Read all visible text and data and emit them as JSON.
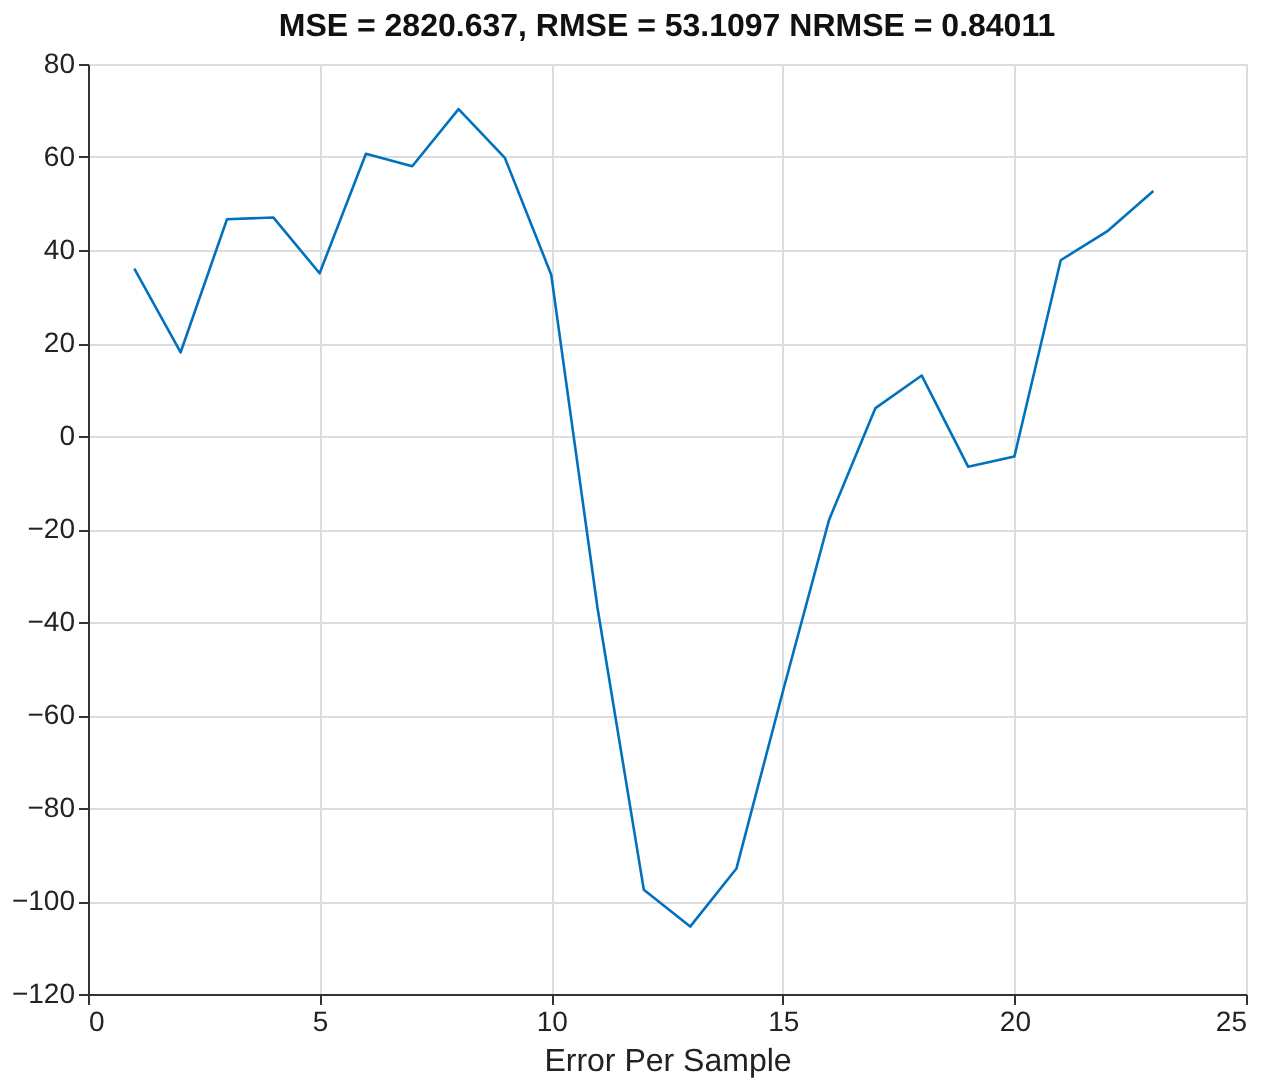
{
  "chart_data": {
    "type": "line",
    "title": "MSE = 2820.637, RMSE = 53.1097 NRMSE = 0.84011",
    "xlabel": "Error Per Sample",
    "x": [
      1,
      2,
      3,
      4,
      5,
      6,
      7,
      8,
      9,
      10,
      11,
      12,
      13,
      14,
      15,
      16,
      17,
      18,
      19,
      20,
      21,
      22,
      23
    ],
    "series": [
      {
        "color": "#0072bd",
        "values": [
          36,
          18,
          46.6,
          47,
          35,
          60.7,
          58,
          70.3,
          59.8,
          34.7,
          -37,
          -97.6,
          -105.5,
          -93,
          -55,
          -18,
          6,
          13,
          -6.6,
          -4.4,
          37.8,
          44,
          52.7
        ]
      }
    ],
    "xlim": [
      0,
      25
    ],
    "xticks": [
      0,
      5,
      10,
      15,
      20,
      25
    ],
    "ylim": [
      -120,
      80
    ],
    "yticks": [
      -120,
      -100,
      -80,
      -60,
      -40,
      -20,
      0,
      20,
      40,
      60,
      80
    ],
    "grid": true,
    "marker": "none",
    "line_style": "solid"
  }
}
